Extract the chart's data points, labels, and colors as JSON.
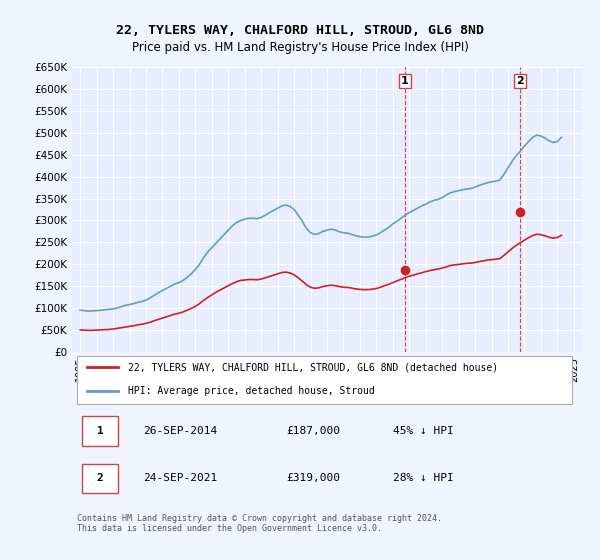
{
  "title": "22, TYLERS WAY, CHALFORD HILL, STROUD, GL6 8ND",
  "subtitle": "Price paid vs. HM Land Registry's House Price Index (HPI)",
  "hpi_color": "#6699cc",
  "price_color": "#cc2222",
  "background_color": "#f0f4ff",
  "plot_bg_color": "#e8eeff",
  "grid_color": "#ffffff",
  "ylim": [
    0,
    650000
  ],
  "yticks": [
    0,
    50000,
    100000,
    150000,
    200000,
    250000,
    300000,
    350000,
    400000,
    450000,
    500000,
    550000,
    600000,
    650000
  ],
  "ytick_labels": [
    "£0",
    "£50K",
    "£100K",
    "£150K",
    "£200K",
    "£250K",
    "£300K",
    "£350K",
    "£400K",
    "£450K",
    "£500K",
    "£550K",
    "£600K",
    "£650K"
  ],
  "xlim_start": 1994.5,
  "xlim_end": 2025.5,
  "sale1_x": 2014.74,
  "sale1_y": 187000,
  "sale1_label": "1",
  "sale2_x": 2021.74,
  "sale2_y": 319000,
  "sale2_label": "2",
  "legend_line1": "22, TYLERS WAY, CHALFORD HILL, STROUD, GL6 8ND (detached house)",
  "legend_line2": "HPI: Average price, detached house, Stroud",
  "table_rows": [
    {
      "num": "1",
      "date": "26-SEP-2014",
      "price": "£187,000",
      "pct": "45% ↓ HPI"
    },
    {
      "num": "2",
      "date": "24-SEP-2021",
      "price": "£319,000",
      "pct": "28% ↓ HPI"
    }
  ],
  "footer": "Contains HM Land Registry data © Crown copyright and database right 2024.\nThis data is licensed under the Open Government Licence v3.0.",
  "hpi_data": {
    "years": [
      1995.0,
      1995.25,
      1995.5,
      1995.75,
      1996.0,
      1996.25,
      1996.5,
      1996.75,
      1997.0,
      1997.25,
      1997.5,
      1997.75,
      1998.0,
      1998.25,
      1998.5,
      1998.75,
      1999.0,
      1999.25,
      1999.5,
      1999.75,
      2000.0,
      2000.25,
      2000.5,
      2000.75,
      2001.0,
      2001.25,
      2001.5,
      2001.75,
      2002.0,
      2002.25,
      2002.5,
      2002.75,
      2003.0,
      2003.25,
      2003.5,
      2003.75,
      2004.0,
      2004.25,
      2004.5,
      2004.75,
      2005.0,
      2005.25,
      2005.5,
      2005.75,
      2006.0,
      2006.25,
      2006.5,
      2006.75,
      2007.0,
      2007.25,
      2007.5,
      2007.75,
      2008.0,
      2008.25,
      2008.5,
      2008.75,
      2009.0,
      2009.25,
      2009.5,
      2009.75,
      2010.0,
      2010.25,
      2010.5,
      2010.75,
      2011.0,
      2011.25,
      2011.5,
      2011.75,
      2012.0,
      2012.25,
      2012.5,
      2012.75,
      2013.0,
      2013.25,
      2013.5,
      2013.75,
      2014.0,
      2014.25,
      2014.5,
      2014.75,
      2015.0,
      2015.25,
      2015.5,
      2015.75,
      2016.0,
      2016.25,
      2016.5,
      2016.75,
      2017.0,
      2017.25,
      2017.5,
      2017.75,
      2018.0,
      2018.25,
      2018.5,
      2018.75,
      2019.0,
      2019.25,
      2019.5,
      2019.75,
      2020.0,
      2020.25,
      2020.5,
      2020.75,
      2021.0,
      2021.25,
      2021.5,
      2021.75,
      2022.0,
      2022.25,
      2022.5,
      2022.75,
      2023.0,
      2023.25,
      2023.5,
      2023.75,
      2024.0,
      2024.25
    ],
    "values": [
      95000,
      94000,
      93000,
      93500,
      94000,
      95000,
      96000,
      97000,
      98000,
      100000,
      103000,
      106000,
      108000,
      110000,
      113000,
      115000,
      118000,
      123000,
      129000,
      135000,
      140000,
      145000,
      150000,
      155000,
      158000,
      163000,
      170000,
      178000,
      188000,
      200000,
      215000,
      228000,
      238000,
      248000,
      258000,
      268000,
      278000,
      288000,
      295000,
      300000,
      303000,
      305000,
      305000,
      304000,
      307000,
      312000,
      318000,
      323000,
      328000,
      333000,
      335000,
      332000,
      325000,
      312000,
      298000,
      282000,
      272000,
      268000,
      270000,
      275000,
      278000,
      280000,
      278000,
      274000,
      272000,
      271000,
      268000,
      265000,
      263000,
      262000,
      262000,
      264000,
      267000,
      272000,
      278000,
      284000,
      292000,
      298000,
      305000,
      312000,
      318000,
      323000,
      328000,
      333000,
      337000,
      342000,
      346000,
      348000,
      352000,
      358000,
      363000,
      366000,
      368000,
      370000,
      372000,
      373000,
      376000,
      380000,
      383000,
      386000,
      388000,
      390000,
      392000,
      405000,
      420000,
      435000,
      448000,
      458000,
      470000,
      480000,
      490000,
      495000,
      493000,
      488000,
      482000,
      478000,
      480000,
      490000
    ]
  },
  "price_data": {
    "years": [
      1995.0,
      1995.25,
      1995.5,
      1995.75,
      1996.0,
      1996.25,
      1996.5,
      1996.75,
      1997.0,
      1997.25,
      1997.5,
      1997.75,
      1998.0,
      1998.25,
      1998.5,
      1998.75,
      1999.0,
      1999.25,
      1999.5,
      1999.75,
      2000.0,
      2000.25,
      2000.5,
      2000.75,
      2001.0,
      2001.25,
      2001.5,
      2001.75,
      2002.0,
      2002.25,
      2002.5,
      2002.75,
      2003.0,
      2003.25,
      2003.5,
      2003.75,
      2004.0,
      2004.25,
      2004.5,
      2004.75,
      2005.0,
      2005.25,
      2005.5,
      2005.75,
      2006.0,
      2006.25,
      2006.5,
      2006.75,
      2007.0,
      2007.25,
      2007.5,
      2007.75,
      2008.0,
      2008.25,
      2008.5,
      2008.75,
      2009.0,
      2009.25,
      2009.5,
      2009.75,
      2010.0,
      2010.25,
      2010.5,
      2010.75,
      2011.0,
      2011.25,
      2011.5,
      2011.75,
      2012.0,
      2012.25,
      2012.5,
      2012.75,
      2013.0,
      2013.25,
      2013.5,
      2013.75,
      2014.0,
      2014.25,
      2014.5,
      2014.75,
      2015.0,
      2015.25,
      2015.5,
      2015.75,
      2016.0,
      2016.25,
      2016.5,
      2016.75,
      2017.0,
      2017.25,
      2017.5,
      2017.75,
      2018.0,
      2018.25,
      2018.5,
      2018.75,
      2019.0,
      2019.25,
      2019.5,
      2019.75,
      2020.0,
      2020.25,
      2020.5,
      2020.75,
      2021.0,
      2021.25,
      2021.5,
      2021.75,
      2022.0,
      2022.25,
      2022.5,
      2022.75,
      2023.0,
      2023.25,
      2023.5,
      2023.75,
      2024.0,
      2024.25
    ],
    "values": [
      50000,
      49500,
      49000,
      49000,
      49500,
      50000,
      50500,
      51000,
      52000,
      53500,
      55000,
      56500,
      58000,
      59500,
      61500,
      63000,
      65000,
      67500,
      71000,
      74000,
      77000,
      80000,
      83000,
      86000,
      88000,
      91000,
      95000,
      99000,
      104000,
      110000,
      117500,
      124000,
      130000,
      136000,
      141000,
      146000,
      151000,
      156000,
      160000,
      163000,
      164000,
      165000,
      165000,
      164500,
      166000,
      169000,
      172000,
      175000,
      178000,
      181000,
      182000,
      180000,
      176000,
      169000,
      161500,
      153000,
      147500,
      145000,
      146000,
      149000,
      151000,
      152000,
      151000,
      149000,
      147500,
      147000,
      145500,
      143500,
      142500,
      142000,
      142000,
      143000,
      144500,
      147500,
      151000,
      154000,
      158000,
      162000,
      165500,
      169000,
      172500,
      175000,
      178000,
      180500,
      183000,
      185500,
      187500,
      189000,
      191000,
      194000,
      197000,
      198500,
      199500,
      201000,
      202000,
      202500,
      204000,
      206000,
      207500,
      209500,
      210500,
      211500,
      212500,
      220000,
      228000,
      236000,
      243000,
      249000,
      255000,
      260500,
      265500,
      268500,
      267500,
      265000,
      261500,
      259500,
      261000,
      266000
    ]
  }
}
